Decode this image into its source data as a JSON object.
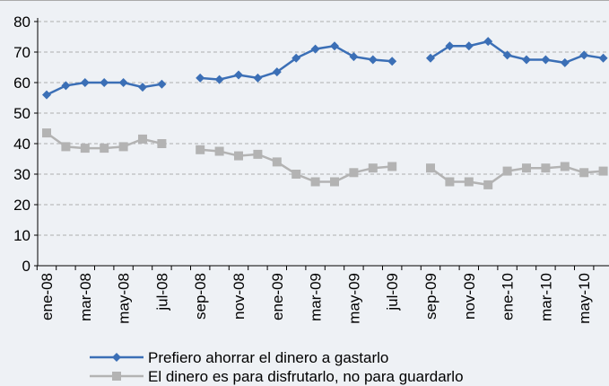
{
  "chart_data": {
    "type": "line",
    "categories": [
      "ene-08",
      null,
      "mar-08",
      null,
      "may-08",
      null,
      "jul-08",
      null,
      "sep-08",
      null,
      "nov-08",
      null,
      "ene-09",
      null,
      "mar-09",
      null,
      "may-09",
      null,
      "jul-09",
      null,
      "sep-09",
      null,
      "nov-09",
      null,
      "ene-10",
      null,
      "mar-10",
      null,
      "may-10",
      null
    ],
    "series": [
      {
        "name": "Prefiero ahorrar el dinero a gastarlo",
        "color": "#3b6fb6",
        "marker": "diamond",
        "values": [
          56,
          59,
          60,
          60,
          60,
          58.5,
          59.5,
          null,
          61.5,
          61,
          62.5,
          61.5,
          63.5,
          68,
          71,
          72,
          68.5,
          67.5,
          67,
          null,
          68,
          72,
          72,
          73.5,
          69,
          67.5,
          67.5,
          66.5,
          69,
          68
        ]
      },
      {
        "name": "El dinero es para disfrutarlo, no para guardarlo",
        "color": "#b3b3b3",
        "marker": "square",
        "values": [
          43.5,
          39,
          38.5,
          38.5,
          39,
          41.5,
          40,
          null,
          38,
          37.5,
          36,
          36.5,
          34,
          30,
          27.5,
          27.5,
          30.5,
          32,
          32.5,
          null,
          32,
          27.5,
          27.5,
          26.5,
          31,
          32,
          32,
          32.5,
          30.5,
          31
        ]
      }
    ],
    "ylim": [
      0,
      80
    ],
    "yticks": [
      0,
      10,
      20,
      30,
      40,
      50,
      60,
      70,
      80
    ],
    "grid": true
  }
}
